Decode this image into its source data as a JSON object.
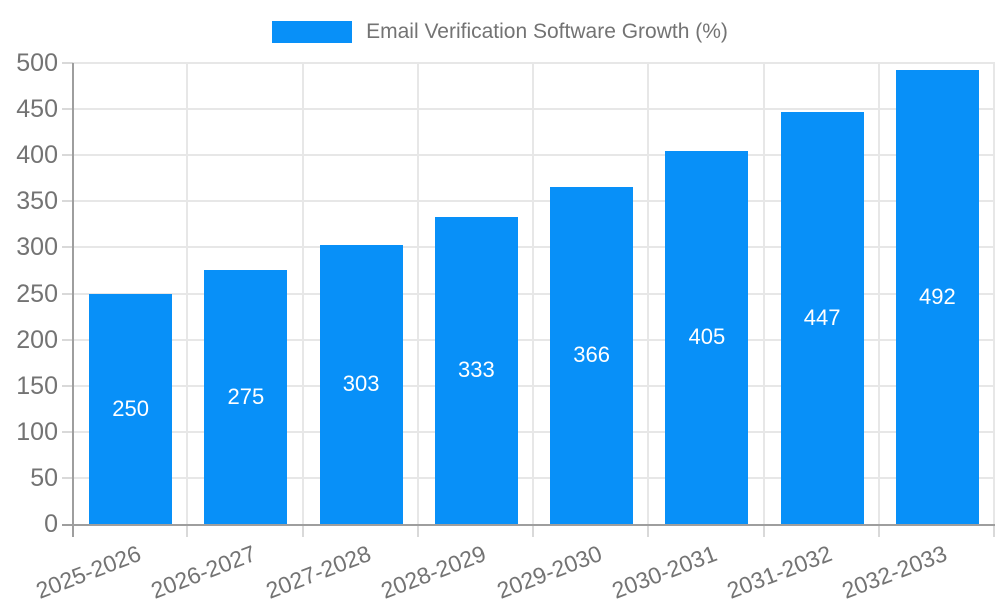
{
  "chart_data": {
    "type": "bar",
    "title": "Email Verification Software Growth (%)",
    "categories": [
      "2025-2026",
      "2026-2027",
      "2027-2028",
      "2028-2029",
      "2029-2030",
      "2030-2031",
      "2031-2032",
      "2032-2033"
    ],
    "values": [
      250,
      275,
      303,
      333,
      366,
      405,
      447,
      492
    ],
    "xlabel": "",
    "ylabel": "",
    "ylim": [
      0,
      500
    ],
    "ytick_step": 50,
    "yticks": [
      0,
      50,
      100,
      150,
      200,
      250,
      300,
      350,
      400,
      450,
      500
    ],
    "grid": true,
    "legend_position": "top",
    "bar_color": "#0890f8",
    "value_label_color": "#ffffff",
    "axis_color": "#9e9e9e",
    "grid_color": "#e7e7e7",
    "tick_color": "#d9d9d9",
    "text_color": "#737373"
  }
}
